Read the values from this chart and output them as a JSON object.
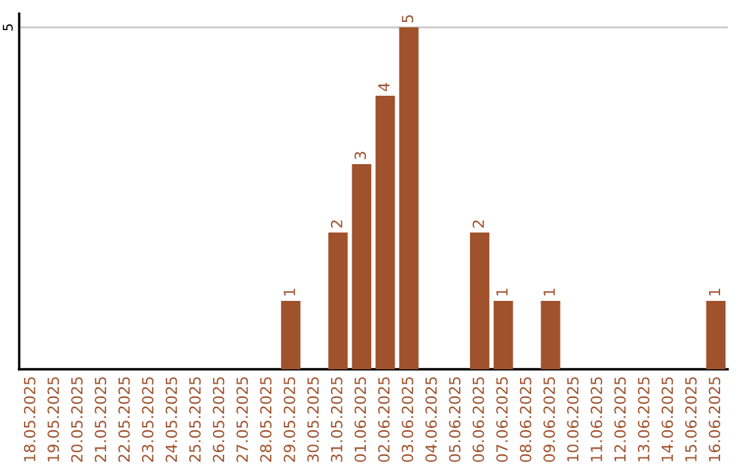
{
  "chart_data": {
    "type": "bar",
    "categories": [
      "18.05.2025",
      "19.05.2025",
      "20.05.2025",
      "21.05.2025",
      "22.05.2025",
      "23.05.2025",
      "24.05.2025",
      "25.05.2025",
      "26.05.2025",
      "27.05.2025",
      "28.05.2025",
      "29.05.2025",
      "30.05.2025",
      "31.05.2025",
      "01.06.2025",
      "02.06.2025",
      "03.06.2025",
      "04.06.2025",
      "05.06.2025",
      "06.06.2025",
      "07.06.2025",
      "08.06.2025",
      "09.06.2025",
      "10.06.2025",
      "11.06.2025",
      "12.06.2025",
      "13.06.2025",
      "14.06.2025",
      "15.06.2025",
      "16.06.2025"
    ],
    "values": [
      0,
      0,
      0,
      0,
      0,
      0,
      0,
      0,
      0,
      0,
      0,
      1,
      0,
      2,
      3,
      4,
      5,
      0,
      0,
      2,
      1,
      0,
      1,
      0,
      0,
      0,
      0,
      0,
      0,
      1
    ],
    "value_labels": [
      null,
      null,
      null,
      null,
      null,
      null,
      null,
      null,
      null,
      null,
      null,
      "1",
      null,
      "2",
      "3",
      "4",
      "5",
      null,
      null,
      "2",
      "1",
      null,
      "1",
      null,
      null,
      null,
      null,
      null,
      null,
      "1"
    ],
    "color": "#a0522d",
    "ylim": [
      0,
      5.2
    ],
    "yticks": [
      5
    ],
    "grid": "y"
  }
}
